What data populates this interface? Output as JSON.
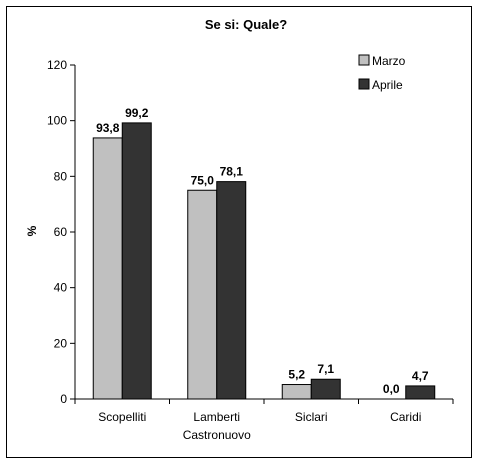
{
  "chart_data": {
    "type": "bar",
    "title": "Se si: Quale?",
    "ylabel": "%",
    "xlabel": "",
    "ylim": [
      0,
      120
    ],
    "yticks": [
      0,
      20,
      40,
      60,
      80,
      100,
      120
    ],
    "categories": [
      [
        "Scopelliti"
      ],
      [
        "Lamberti",
        "Castronuovo"
      ],
      [
        "Siclari"
      ],
      [
        "Caridi"
      ]
    ],
    "series": [
      {
        "name": "Marzo",
        "color": "#c0c0c0",
        "values": [
          93.8,
          75.0,
          5.2,
          0.0
        ],
        "labels": [
          "93,8",
          "75,0",
          "5,2",
          "0,0"
        ]
      },
      {
        "name": "Aprile",
        "color": "#333333",
        "values": [
          99.2,
          78.1,
          7.1,
          4.7
        ],
        "labels": [
          "99,2",
          "78,1",
          "7,1",
          "4,7"
        ]
      }
    ],
    "legend": "top-right",
    "grid": false
  }
}
